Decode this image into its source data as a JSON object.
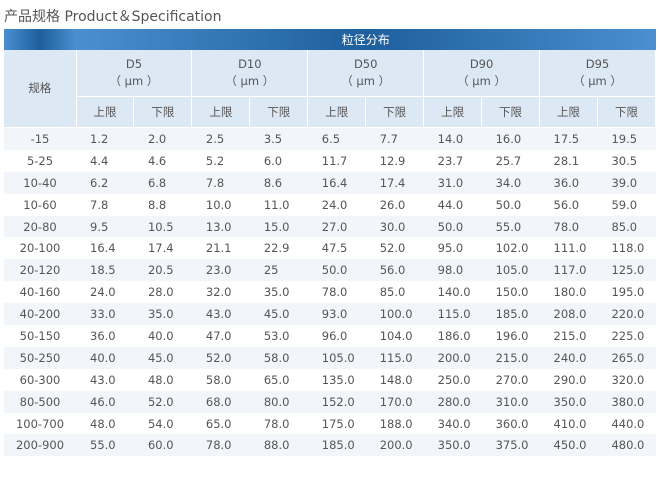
{
  "page_title": "产品规格 Product＆Specification",
  "table": {
    "band_label": "粒径分布",
    "spec_header": "规格",
    "groups": [
      {
        "name": "D5",
        "unit": "（ μm ）"
      },
      {
        "name": "D10",
        "unit": "（ μm ）"
      },
      {
        "name": "D50",
        "unit": "（ μm ）"
      },
      {
        "name": "D90",
        "unit": "（ μm ）"
      },
      {
        "name": "D95",
        "unit": "（ μm ）"
      }
    ],
    "upper_label": "上限",
    "lower_label": "下限",
    "rows": [
      {
        "spec": "-15",
        "values": [
          "1.2",
          "2.0",
          "2.5",
          "3.5",
          "6.5",
          "7.7",
          "14.0",
          "16.0",
          "17.5",
          "19.5"
        ]
      },
      {
        "spec": "5-25",
        "values": [
          "4.4",
          "4.6",
          "5.2",
          "6.0",
          "11.7",
          "12.9",
          "23.7",
          "25.7",
          "28.1",
          "30.5"
        ]
      },
      {
        "spec": "10-40",
        "values": [
          "6.2",
          "6.8",
          "7.8",
          "8.6",
          "16.4",
          "17.4",
          "31.0",
          "34.0",
          "36.0",
          "39.0"
        ]
      },
      {
        "spec": "10-60",
        "values": [
          "7.8",
          "8.8",
          "10.0",
          "11.0",
          "24.0",
          "26.0",
          "44.0",
          "50.0",
          "56.0",
          "59.0"
        ]
      },
      {
        "spec": "20-80",
        "values": [
          "9.5",
          "10.5",
          "13.0",
          "15.0",
          "27.0",
          "30.0",
          "50.0",
          "55.0",
          "78.0",
          "85.0"
        ]
      },
      {
        "spec": "20-100",
        "values": [
          "16.4",
          "17.4",
          "21.1",
          "22.9",
          "47.5",
          "52.0",
          "95.0",
          "102.0",
          "111.0",
          "118.0"
        ]
      },
      {
        "spec": "20-120",
        "values": [
          "18.5",
          "20.5",
          "23.0",
          "25",
          "50.0",
          "56.0",
          "98.0",
          "105.0",
          "117.0",
          "125.0"
        ]
      },
      {
        "spec": "40-160",
        "values": [
          "24.0",
          "28.0",
          "32.0",
          "35.0",
          "78.0",
          "85.0",
          "140.0",
          "150.0",
          "180.0",
          "195.0"
        ]
      },
      {
        "spec": "40-200",
        "values": [
          "33.0",
          "35.0",
          "43.0",
          "45.0",
          "93.0",
          "100.0",
          "115.0",
          "185.0",
          "208.0",
          "220.0"
        ]
      },
      {
        "spec": "50-150",
        "values": [
          "36.0",
          "40.0",
          "47.0",
          "53.0",
          "96.0",
          "104.0",
          "186.0",
          "196.0",
          "215.0",
          "225.0"
        ]
      },
      {
        "spec": "50-250",
        "values": [
          "40.0",
          "45.0",
          "52.0",
          "58.0",
          "105.0",
          "115.0",
          "200.0",
          "215.0",
          "240.0",
          "265.0"
        ]
      },
      {
        "spec": "60-300",
        "values": [
          "43.0",
          "48.0",
          "58.0",
          "65.0",
          "135.0",
          "148.0",
          "250.0",
          "270.0",
          "290.0",
          "320.0"
        ]
      },
      {
        "spec": "80-500",
        "values": [
          "46.0",
          "52.0",
          "68.0",
          "80.0",
          "152.0",
          "170.0",
          "280.0",
          "310.0",
          "350.0",
          "380.0"
        ]
      },
      {
        "spec": "100-700",
        "values": [
          "48.0",
          "54.0",
          "65.0",
          "78.0",
          "175.0",
          "188.0",
          "340.0",
          "360.0",
          "410.0",
          "440.0"
        ]
      },
      {
        "spec": "200-900",
        "values": [
          "55.0",
          "60.0",
          "78.0",
          "88.0",
          "185.0",
          "200.0",
          "350.0",
          "375.0",
          "450.0",
          "480.0"
        ]
      }
    ]
  },
  "colors": {
    "band_gradient_edge": "#4a8fd0",
    "band_gradient_center": "#1e5f9e",
    "header_bg": "#dde8f5",
    "row_stripe": "#f2f6fb"
  }
}
